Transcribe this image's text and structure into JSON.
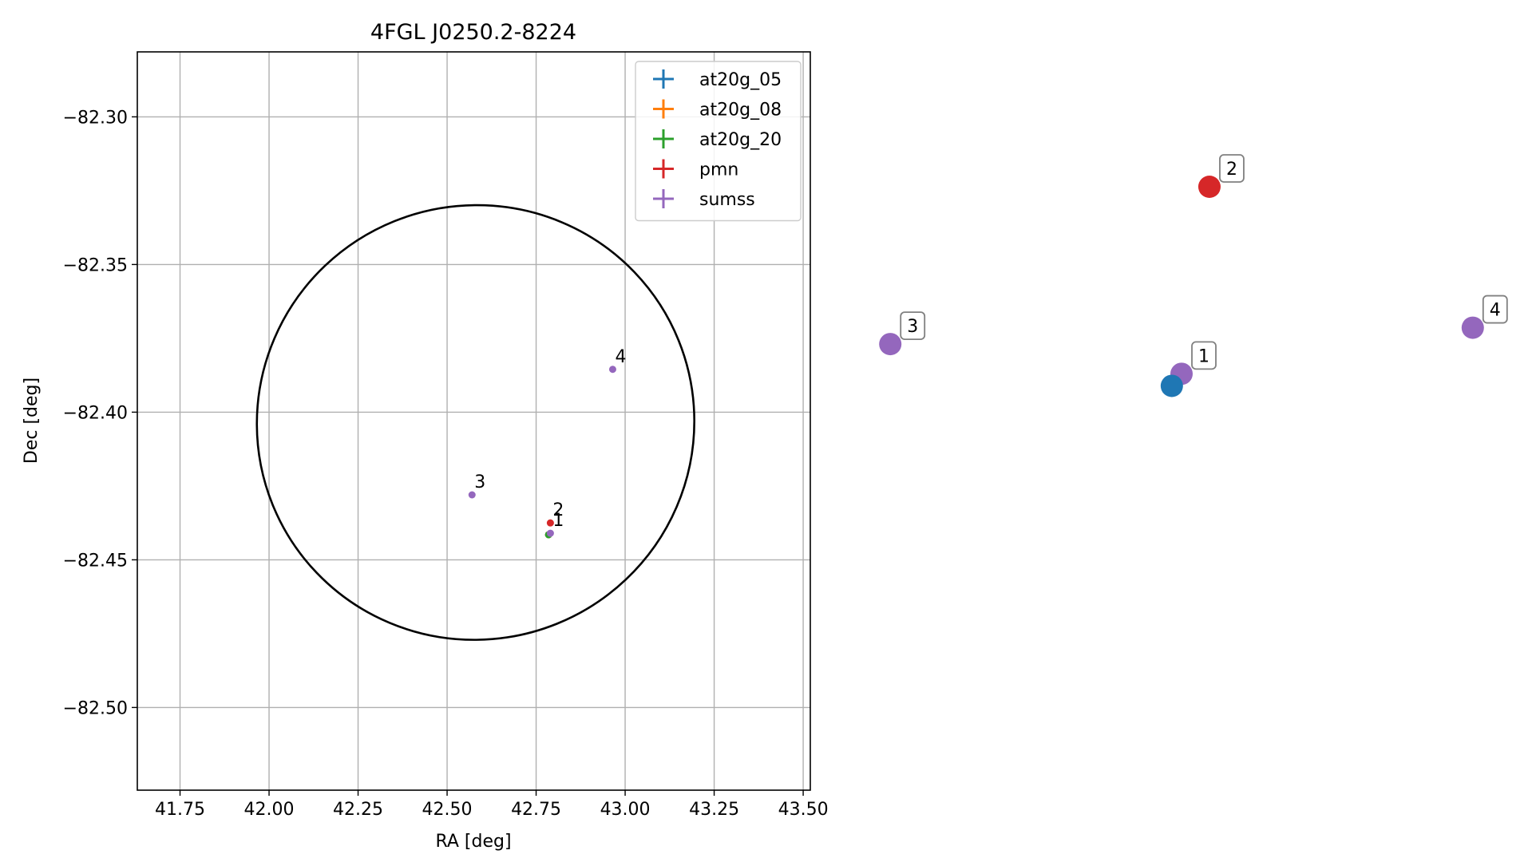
{
  "chart_data": [
    {
      "type": "scatter",
      "title": "4FGL J0250.2-8224",
      "xlabel": "RA [deg]",
      "ylabel": "Dec [deg]",
      "xlim": [
        41.63,
        43.52
      ],
      "ylim": [
        -82.528,
        -82.278
      ],
      "x_ticks": [
        41.75,
        42.0,
        42.25,
        42.5,
        42.75,
        43.0,
        43.25,
        43.5
      ],
      "x_tick_labels": [
        "41.75",
        "42.00",
        "42.25",
        "42.50",
        "42.75",
        "43.00",
        "43.25",
        "43.50"
      ],
      "y_ticks": [
        -82.3,
        -82.35,
        -82.4,
        -82.45,
        -82.5
      ],
      "y_tick_labels": [
        "−82.30",
        "−82.35",
        "−82.40",
        "−82.45",
        "−82.50"
      ],
      "grid": true,
      "legend_position": "top-right",
      "legend": [
        {
          "label": "at20g_05",
          "color": "#1f77b4"
        },
        {
          "label": "at20g_08",
          "color": "#ff7f0e"
        },
        {
          "label": "at20g_20",
          "color": "#2ca02c"
        },
        {
          "label": "pmn",
          "color": "#d62728"
        },
        {
          "label": "sumss",
          "color": "#9467bd"
        }
      ],
      "ellipse": {
        "center": [
          42.58,
          -82.4035
        ],
        "ra_half_width": 0.615,
        "dec_half_height": 0.0735,
        "color": "#000000"
      },
      "points": [
        {
          "catalog": "at20g_05",
          "label": "",
          "ra": 42.785,
          "dec": -82.4415,
          "color": "#1f77b4"
        },
        {
          "catalog": "at20g_08",
          "label": "",
          "ra": 42.785,
          "dec": -82.4415,
          "color": "#ff7f0e"
        },
        {
          "catalog": "at20g_20",
          "label": "",
          "ra": 42.785,
          "dec": -82.4415,
          "color": "#2ca02c"
        },
        {
          "catalog": "sumss",
          "label": "1",
          "ra": 42.79,
          "dec": -82.441,
          "color": "#9467bd"
        },
        {
          "catalog": "pmn",
          "label": "2",
          "ra": 42.79,
          "dec": -82.4375,
          "color": "#d62728"
        },
        {
          "catalog": "sumss",
          "label": "3",
          "ra": 42.57,
          "dec": -82.428,
          "color": "#9467bd"
        },
        {
          "catalog": "sumss",
          "label": "4",
          "ra": 42.965,
          "dec": -82.3855,
          "color": "#9467bd"
        }
      ]
    },
    {
      "type": "scatter",
      "title": "",
      "axes": false,
      "points": [
        {
          "label": "1",
          "x": 0.5,
          "y": 0.466,
          "color": "#9467bd",
          "boxed": true
        },
        {
          "label": "",
          "x": 0.484,
          "y": 0.438,
          "color": "#1f77b4",
          "boxed": false
        },
        {
          "label": "2",
          "x": 0.546,
          "y": 0.9,
          "color": "#d62728",
          "boxed": true
        },
        {
          "label": "3",
          "x": 0.02,
          "y": 0.535,
          "color": "#9467bd",
          "boxed": true
        },
        {
          "label": "4",
          "x": 0.98,
          "y": 0.573,
          "color": "#9467bd",
          "boxed": true
        }
      ]
    }
  ]
}
